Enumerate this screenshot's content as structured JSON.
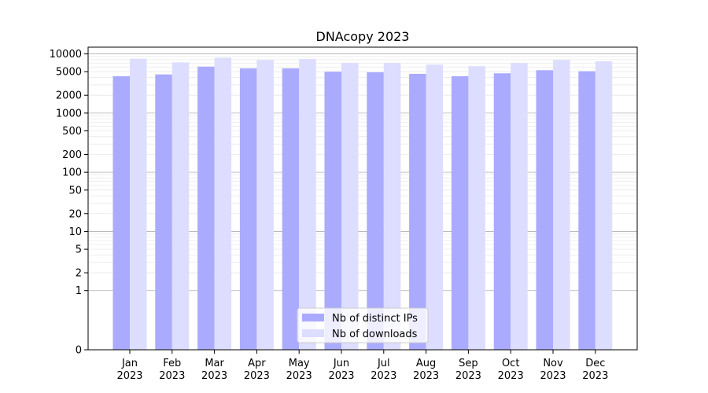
{
  "chart_data": {
    "type": "bar",
    "title": "DNAcopy 2023",
    "xlabel": "",
    "ylabel": "",
    "yscale": "symlog",
    "ylim": [
      0,
      13000
    ],
    "yticks": [
      0,
      1,
      2,
      5,
      10,
      20,
      50,
      100,
      200,
      500,
      1000,
      2000,
      5000,
      10000
    ],
    "ytick_labels": [
      "0",
      "1",
      "2",
      "5",
      "10",
      "20",
      "50",
      "100",
      "200",
      "500",
      "1000",
      "2000",
      "5000",
      "10000"
    ],
    "categories": [
      "Jan\n2023",
      "Feb\n2023",
      "Mar\n2023",
      "Apr\n2023",
      "May\n2023",
      "Jun\n2023",
      "Jul\n2023",
      "Aug\n2023",
      "Sep\n2023",
      "Oct\n2023",
      "Nov\n2023",
      "Dec\n2023"
    ],
    "category_lines": [
      [
        "Jan",
        "2023"
      ],
      [
        "Feb",
        "2023"
      ],
      [
        "Mar",
        "2023"
      ],
      [
        "Apr",
        "2023"
      ],
      [
        "May",
        "2023"
      ],
      [
        "Jun",
        "2023"
      ],
      [
        "Jul",
        "2023"
      ],
      [
        "Aug",
        "2023"
      ],
      [
        "Sep",
        "2023"
      ],
      [
        "Oct",
        "2023"
      ],
      [
        "Nov",
        "2023"
      ],
      [
        "Dec",
        "2023"
      ]
    ],
    "series": [
      {
        "name": "Nb of distinct IPs",
        "color": "#aaaaff",
        "values": [
          4200,
          4500,
          6100,
          5700,
          5700,
          5000,
          4900,
          4600,
          4200,
          4700,
          5300,
          5100
        ]
      },
      {
        "name": "Nb of downloads",
        "color": "#ddddff",
        "values": [
          8300,
          7200,
          8600,
          7900,
          8200,
          7000,
          7000,
          6600,
          6200,
          7000,
          7900,
          7500
        ]
      }
    ],
    "grid": true,
    "legend_position": "bottom-center"
  }
}
